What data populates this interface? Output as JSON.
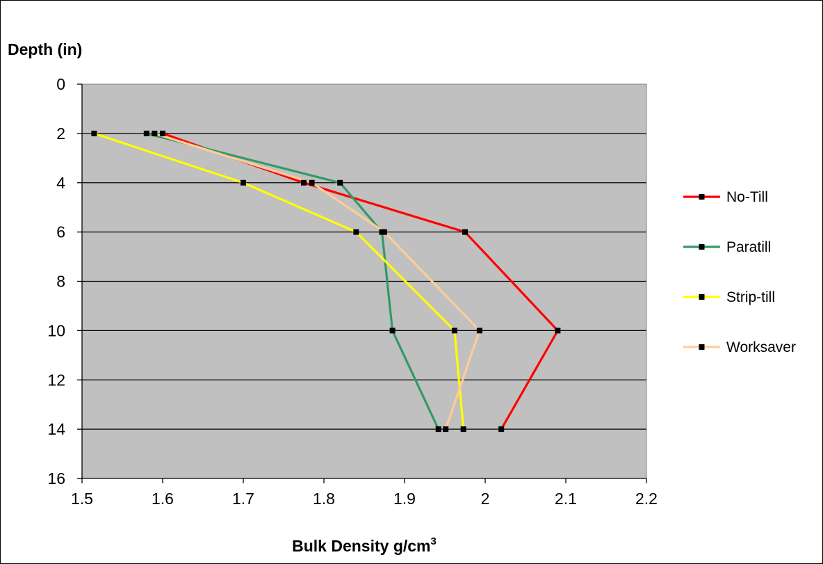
{
  "chart_data": {
    "type": "line",
    "orientation": "depth-profile",
    "ylabel": "Depth (in)",
    "xlabel": "Bulk Density g/cm",
    "xlabel_superscript": "3",
    "xlim": [
      1.5,
      2.2
    ],
    "ylim": [
      0,
      16
    ],
    "y_inverted": true,
    "x_ticks": [
      "1.5",
      "1.6",
      "1.7",
      "1.8",
      "1.9",
      "2",
      "2.1",
      "2.2"
    ],
    "y_ticks": [
      "0",
      "2",
      "4",
      "6",
      "8",
      "10",
      "12",
      "14",
      "16"
    ],
    "grid": "horizontal",
    "plot_background": "#c0c0c0",
    "legend_position": "right",
    "series": [
      {
        "name": "No-Till",
        "color": "#ff0000",
        "depth": [
          2,
          4,
          6,
          10,
          14
        ],
        "density": [
          1.6,
          1.775,
          1.975,
          2.09,
          2.02
        ]
      },
      {
        "name": "Paratill",
        "color": "#339966",
        "depth": [
          2,
          4,
          6,
          10,
          14
        ],
        "density": [
          1.58,
          1.82,
          1.872,
          1.885,
          1.942
        ]
      },
      {
        "name": "Strip-till",
        "color": "#ffff00",
        "depth": [
          2,
          4,
          6,
          10,
          14
        ],
        "density": [
          1.515,
          1.7,
          1.84,
          1.962,
          1.973
        ]
      },
      {
        "name": "Worksaver",
        "color": "#ffcc99",
        "depth": [
          2,
          4,
          6,
          10,
          14
        ],
        "density": [
          1.59,
          1.785,
          1.875,
          1.993,
          1.951
        ]
      }
    ]
  }
}
